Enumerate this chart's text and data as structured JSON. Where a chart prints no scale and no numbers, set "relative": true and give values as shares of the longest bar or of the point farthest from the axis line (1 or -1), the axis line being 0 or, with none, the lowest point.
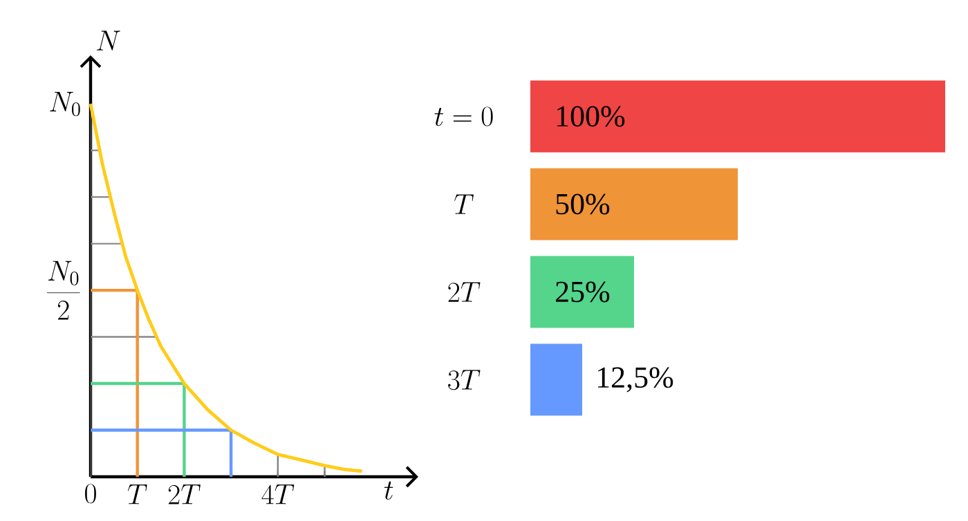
{
  "chart_data": [
    {
      "type": "line",
      "xlabel": "t",
      "ylabel": "N",
      "xlim": [
        0,
        7
      ],
      "grid": "x",
      "relative": true,
      "xticks": [
        {
          "value": 0,
          "label": "0"
        },
        {
          "value": 1,
          "label": "T"
        },
        {
          "value": 2,
          "label": "2T"
        },
        {
          "value": 3,
          "label": null
        },
        {
          "value": 4,
          "label": "4T"
        },
        {
          "value": 5,
          "label": null
        }
      ],
      "annotations": [
        {
          "text": "N_0",
          "x": 0,
          "y": 1
        },
        {
          "text": "\\frac{N_0}{2}",
          "x": 0,
          "y": 0.5
        }
      ],
      "ref_lines": [
        {
          "axis": "y",
          "value": 0.375,
          "color": "#888888"
        },
        {
          "axis": "y",
          "value": 0.625,
          "color": "#888888"
        },
        {
          "axis": "y",
          "value": 0.75,
          "color": "#888888"
        },
        {
          "axis": "y",
          "value": 0.875,
          "color": "#888888"
        }
      ],
      "series": [
        {
          "type": "line",
          "color": "#ffcc1a",
          "x": [
            0,
            0.25,
            0.5,
            0.75,
            1,
            1.25,
            1.5,
            1.75,
            2,
            2.5,
            3,
            3.5,
            4,
            4.5,
            5,
            5.4,
            5.8
          ],
          "values": [
            1,
            0.84,
            0.71,
            0.59,
            0.5,
            0.42,
            0.35,
            0.3,
            0.25,
            0.18,
            0.125,
            0.09,
            0.06,
            0.045,
            0.03,
            0.02,
            0.015
          ]
        },
        {
          "type": "line",
          "color": "#f0943a",
          "x": [
            0,
            1,
            1
          ],
          "values": [
            0.5,
            0.5,
            0
          ]
        },
        {
          "type": "line",
          "color": "#55d48c",
          "x": [
            0,
            2,
            2
          ],
          "values": [
            0.25,
            0.25,
            0
          ]
        },
        {
          "type": "line",
          "color": "#6699ff",
          "x": [
            0,
            3,
            3
          ],
          "values": [
            0.125,
            0.125,
            0
          ]
        }
      ]
    },
    {
      "type": "bar",
      "orientation": "horizontal",
      "categories": [
        "t = 0",
        "T",
        "2T",
        "3T"
      ],
      "values": [
        100,
        50,
        25,
        12.5
      ],
      "colors": [
        "#f04545",
        "#f09438",
        "#55d48c",
        "#6699ff"
      ],
      "value_labels": [
        "100%",
        "50%",
        "25%",
        "12,5%"
      ]
    }
  ]
}
